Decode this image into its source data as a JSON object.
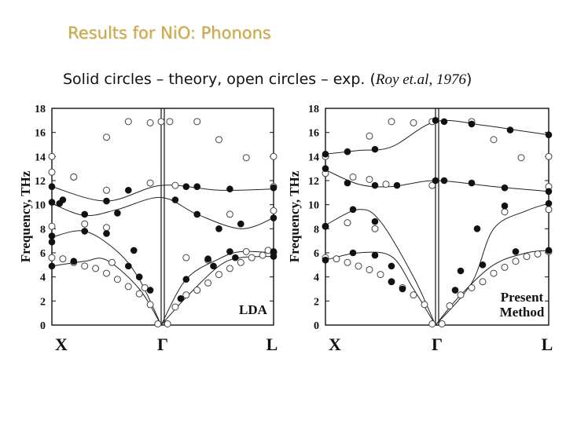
{
  "slide": {
    "title": "Results for NiO: Phonons",
    "subtitle_main": "Solid circles – theory, open circles – exp. (",
    "subtitle_cite": "Roy et.al, 1976",
    "subtitle_end": ")"
  },
  "colors": {
    "title": "#c9a84f",
    "ink": "#111111"
  },
  "chart_data": [
    {
      "type": "scatter",
      "panel_label": "LDA",
      "ylabel": "Frequency, THz",
      "ylim": [
        0,
        18
      ],
      "yticks": [
        0,
        2,
        4,
        6,
        8,
        10,
        12,
        14,
        16,
        18
      ],
      "k_points": [
        "X",
        "Γ",
        "L"
      ],
      "xlim": [
        0,
        2
      ],
      "theory_curves": [
        [
          [
            0,
            11.5
          ],
          [
            0.5,
            10.3
          ],
          [
            1,
            11.6
          ],
          [
            1.5,
            11.2
          ],
          [
            2,
            11.3
          ]
        ],
        [
          [
            0,
            10.1
          ],
          [
            0.3,
            9.1
          ],
          [
            0.6,
            9.6
          ],
          [
            1,
            10.6
          ],
          [
            1.3,
            9.2
          ],
          [
            1.7,
            8.0
          ],
          [
            2,
            8.9
          ]
        ],
        [
          [
            0,
            7.3
          ],
          [
            0.3,
            7.8
          ],
          [
            0.6,
            6.1
          ],
          [
            0.8,
            3.8
          ],
          [
            1,
            0
          ]
        ],
        [
          [
            1,
            0
          ],
          [
            1.2,
            3.8
          ],
          [
            1.5,
            5.5
          ],
          [
            1.7,
            6.1
          ],
          [
            2,
            6.0
          ]
        ],
        [
          [
            0,
            4.9
          ],
          [
            0.3,
            5.3
          ],
          [
            0.5,
            5.4
          ],
          [
            0.8,
            3.0
          ],
          [
            1,
            0
          ]
        ],
        [
          [
            1,
            0
          ],
          [
            1.2,
            2.3
          ],
          [
            1.5,
            4.9
          ],
          [
            1.7,
            5.6
          ],
          [
            2,
            5.7
          ]
        ]
      ],
      "theory_points": [
        [
          0,
          11.5
        ],
        [
          0.07,
          10.1
        ],
        [
          0.1,
          10.4
        ],
        [
          0.5,
          10.3
        ],
        [
          0.7,
          11.2
        ],
        [
          1.1,
          10.4
        ],
        [
          1.2,
          11.5
        ],
        [
          1.3,
          11.5
        ],
        [
          1.6,
          11.3
        ],
        [
          2,
          11.4
        ],
        [
          0,
          10.2
        ],
        [
          0.3,
          9.2
        ],
        [
          0.6,
          9.3
        ],
        [
          1.3,
          9.2
        ],
        [
          1.5,
          8.0
        ],
        [
          1.7,
          8.4
        ],
        [
          2,
          8.9
        ],
        [
          0,
          7.4
        ],
        [
          0.3,
          7.8
        ],
        [
          0.5,
          7.6
        ],
        [
          0.75,
          6.2
        ],
        [
          0.8,
          4.0
        ],
        [
          0,
          6.9
        ],
        [
          1.2,
          3.8
        ],
        [
          1.4,
          5.5
        ],
        [
          1.6,
          6.1
        ],
        [
          2,
          6.1
        ],
        [
          0,
          4.9
        ],
        [
          0.2,
          5.3
        ],
        [
          0.7,
          4.9
        ],
        [
          0.9,
          2.9
        ],
        [
          1.15,
          2.2
        ],
        [
          1.45,
          4.9
        ],
        [
          1.65,
          5.6
        ],
        [
          2,
          5.7
        ]
      ],
      "experiment_points": [
        [
          0,
          14.0
        ],
        [
          0,
          12.7
        ],
        [
          0.2,
          12.3
        ],
        [
          0.5,
          15.6
        ],
        [
          0.7,
          16.9
        ],
        [
          0.9,
          16.8
        ],
        [
          1,
          16.9
        ],
        [
          1.05,
          16.9
        ],
        [
          1.3,
          16.9
        ],
        [
          1.5,
          15.4
        ],
        [
          1.75,
          13.9
        ],
        [
          2,
          14.0
        ],
        [
          0.2,
          12.3
        ],
        [
          0.5,
          11.2
        ],
        [
          0.9,
          11.8
        ],
        [
          1.1,
          11.6
        ],
        [
          2,
          11.5
        ],
        [
          0,
          8.2
        ],
        [
          0.3,
          8.4
        ],
        [
          0.5,
          8.1
        ],
        [
          1.2,
          5.6
        ],
        [
          1.4,
          5.4
        ],
        [
          1.6,
          9.2
        ],
        [
          2,
          9.5
        ],
        [
          0,
          5.6
        ],
        [
          0.1,
          5.5
        ],
        [
          0.2,
          5.2
        ],
        [
          0.3,
          4.9
        ],
        [
          0.4,
          4.7
        ],
        [
          0.5,
          4.3
        ],
        [
          0.6,
          3.8
        ],
        [
          0.7,
          3.2
        ],
        [
          0.8,
          2.6
        ],
        [
          0.9,
          1.7
        ],
        [
          0.97,
          0.1
        ],
        [
          1.03,
          0.1
        ],
        [
          1.1,
          1.5
        ],
        [
          1.2,
          2.5
        ],
        [
          1.3,
          2.9
        ],
        [
          1.4,
          3.5
        ],
        [
          1.5,
          4.2
        ],
        [
          1.6,
          4.7
        ],
        [
          1.7,
          5.2
        ],
        [
          1.8,
          5.6
        ],
        [
          1.9,
          5.8
        ],
        [
          2,
          6.0
        ],
        [
          0.85,
          3.1
        ],
        [
          0.55,
          5.2
        ],
        [
          1.75,
          6.1
        ],
        [
          1.95,
          6.2
        ]
      ]
    },
    {
      "type": "scatter",
      "panel_label_lines": [
        "Present",
        "Method"
      ],
      "ylabel": "Frequency, THz",
      "ylim": [
        0,
        18
      ],
      "yticks": [
        0,
        2,
        4,
        6,
        8,
        10,
        12,
        14,
        16,
        18
      ],
      "k_points": [
        "X",
        "Γ",
        "L"
      ],
      "xlim": [
        0,
        2
      ],
      "theory_curves": [
        [
          [
            0,
            14.2
          ],
          [
            0.3,
            14.5
          ],
          [
            0.6,
            14.8
          ],
          [
            1,
            16.9
          ],
          [
            1.4,
            16.6
          ],
          [
            1.7,
            16.2
          ],
          [
            2,
            15.8
          ]
        ],
        [
          [
            0,
            12.9
          ],
          [
            0.3,
            11.7
          ],
          [
            0.6,
            11.5
          ],
          [
            1,
            12.0
          ],
          [
            1.5,
            11.5
          ],
          [
            2,
            11.1
          ]
        ],
        [
          [
            0,
            8.3
          ],
          [
            0.3,
            9.6
          ],
          [
            0.5,
            8.6
          ],
          [
            0.8,
            4.0
          ],
          [
            1,
            0
          ]
        ],
        [
          [
            1,
            0
          ],
          [
            1.3,
            3.5
          ],
          [
            1.5,
            8.0
          ],
          [
            1.8,
            9.5
          ],
          [
            2,
            10.1
          ]
        ],
        [
          [
            0,
            5.4
          ],
          [
            0.3,
            6.0
          ],
          [
            0.6,
            5.7
          ],
          [
            0.8,
            3.0
          ],
          [
            1,
            0
          ]
        ],
        [
          [
            1,
            0
          ],
          [
            1.2,
            2.5
          ],
          [
            1.5,
            5.0
          ],
          [
            1.8,
            6.0
          ],
          [
            2,
            6.2
          ]
        ]
      ],
      "theory_points": [
        [
          0,
          14.2
        ],
        [
          0.2,
          14.4
        ],
        [
          0.45,
          14.6
        ],
        [
          1,
          17.0
        ],
        [
          1.05,
          16.9
        ],
        [
          1.3,
          16.7
        ],
        [
          1.65,
          16.2
        ],
        [
          2,
          15.8
        ],
        [
          0,
          13.0
        ],
        [
          0.2,
          11.8
        ],
        [
          0.45,
          11.6
        ],
        [
          0.65,
          11.6
        ],
        [
          1,
          12.0
        ],
        [
          1.05,
          12.0
        ],
        [
          1.3,
          11.8
        ],
        [
          1.6,
          11.4
        ],
        [
          2,
          11.1
        ],
        [
          0,
          8.2
        ],
        [
          0.25,
          9.6
        ],
        [
          0.45,
          8.6
        ],
        [
          0.6,
          4.9
        ],
        [
          1.2,
          4.5
        ],
        [
          1.35,
          8.0
        ],
        [
          1.6,
          9.9
        ],
        [
          2,
          10.1
        ],
        [
          0,
          5.4
        ],
        [
          0.25,
          6.0
        ],
        [
          0.45,
          5.8
        ],
        [
          0.6,
          3.6
        ],
        [
          0.7,
          3.0
        ],
        [
          1.15,
          2.9
        ],
        [
          1.4,
          5.0
        ],
        [
          1.7,
          6.1
        ],
        [
          2,
          6.2
        ]
      ],
      "experiment_points": [
        [
          0,
          14.0
        ],
        [
          0,
          12.6
        ],
        [
          0.25,
          12.3
        ],
        [
          0.4,
          15.7
        ],
        [
          0.6,
          16.9
        ],
        [
          0.8,
          16.8
        ],
        [
          0.97,
          16.9
        ],
        [
          1.3,
          16.9
        ],
        [
          1.5,
          15.4
        ],
        [
          1.75,
          13.9
        ],
        [
          2,
          14.0
        ],
        [
          0.4,
          12.1
        ],
        [
          0.55,
          11.7
        ],
        [
          0.97,
          11.6
        ],
        [
          2,
          11.5
        ],
        [
          0,
          8.2
        ],
        [
          0.2,
          8.5
        ],
        [
          0.45,
          8.0
        ],
        [
          1.6,
          9.4
        ],
        [
          2,
          9.6
        ],
        [
          0,
          5.6
        ],
        [
          0.1,
          5.5
        ],
        [
          0.2,
          5.2
        ],
        [
          0.3,
          4.9
        ],
        [
          0.4,
          4.6
        ],
        [
          0.5,
          4.2
        ],
        [
          0.6,
          3.6
        ],
        [
          0.7,
          3.1
        ],
        [
          0.8,
          2.5
        ],
        [
          0.9,
          1.7
        ],
        [
          0.97,
          0.1
        ],
        [
          1.03,
          0.1
        ],
        [
          1.1,
          1.6
        ],
        [
          1.2,
          2.5
        ],
        [
          1.3,
          3.1
        ],
        [
          1.4,
          3.6
        ],
        [
          1.5,
          4.3
        ],
        [
          1.6,
          4.8
        ],
        [
          1.7,
          5.3
        ],
        [
          1.8,
          5.7
        ],
        [
          1.9,
          5.9
        ],
        [
          2,
          6.1
        ]
      ]
    }
  ]
}
